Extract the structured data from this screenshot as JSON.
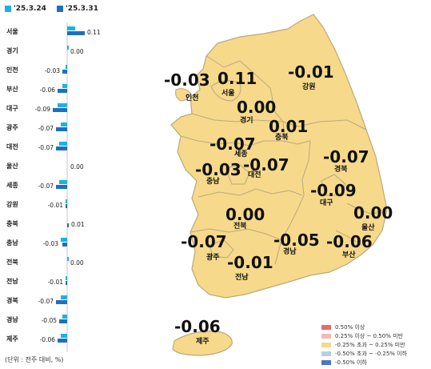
{
  "chart_data": {
    "type": "bar",
    "orientation": "horizontal",
    "categories": [
      "서울",
      "경기",
      "인천",
      "부산",
      "대구",
      "광주",
      "대전",
      "울산",
      "세종",
      "강원",
      "충북",
      "충남",
      "전북",
      "전남",
      "경북",
      "경남",
      "제주"
    ],
    "series": [
      {
        "name": "'25.3.24",
        "color": "#17b3e8",
        "values": [
          0.05,
          0.01,
          -0.01,
          -0.03,
          -0.06,
          -0.04,
          -0.05,
          0.0,
          -0.05,
          -0.01,
          0.0,
          -0.04,
          0.01,
          -0.01,
          -0.04,
          -0.03,
          -0.04
        ]
      },
      {
        "name": "'25.3.31",
        "color": "#1f6fbf",
        "values": [
          0.11,
          0.0,
          -0.03,
          -0.06,
          -0.09,
          -0.07,
          -0.07,
          0.0,
          -0.07,
          -0.01,
          0.01,
          -0.03,
          0.0,
          -0.01,
          -0.07,
          -0.05,
          -0.06
        ]
      }
    ],
    "value_labels": [
      "0.11",
      "0.00",
      "-0.03",
      "-0.06",
      "-0.09",
      "-0.07",
      "-0.07",
      "0.00",
      "-0.07",
      "-0.01",
      "0.01",
      "-0.03",
      "0.00",
      "-0.01",
      "-0.07",
      "-0.05",
      "-0.06"
    ],
    "legend_position": "top-left",
    "unit_note": "(단위 : 전주 대비, %)"
  },
  "map": {
    "regions": [
      {
        "id": "seoul",
        "name": "서울",
        "value": "0.11"
      },
      {
        "id": "gyeonggi",
        "name": "경기",
        "value": "0.00"
      },
      {
        "id": "incheon",
        "name": "인천",
        "value": "-0.03"
      },
      {
        "id": "gangwon",
        "name": "강원",
        "value": "-0.01"
      },
      {
        "id": "chungbuk",
        "name": "충북",
        "value": "0.01"
      },
      {
        "id": "sejong",
        "name": "세종",
        "value": "-0.07"
      },
      {
        "id": "chungnam",
        "name": "충남",
        "value": "-0.03"
      },
      {
        "id": "daejeon",
        "name": "대전",
        "value": "-0.07"
      },
      {
        "id": "gyeongbuk",
        "name": "경북",
        "value": "-0.07"
      },
      {
        "id": "daegu",
        "name": "대구",
        "value": "-0.09"
      },
      {
        "id": "jeonbuk",
        "name": "전북",
        "value": "0.00"
      },
      {
        "id": "ulsan",
        "name": "울산",
        "value": "0.00"
      },
      {
        "id": "gwangju",
        "name": "광주",
        "value": "-0.07"
      },
      {
        "id": "gyeongnam",
        "name": "경남",
        "value": "-0.05"
      },
      {
        "id": "busan",
        "name": "부산",
        "value": "-0.06"
      },
      {
        "id": "jeonnam",
        "name": "전남",
        "value": "-0.01"
      },
      {
        "id": "jeju",
        "name": "제주",
        "value": "-0.06"
      }
    ],
    "fill_color": "#f6d98a",
    "border_color": "#b9a97e",
    "legend": [
      {
        "label": "0.50% 이상",
        "color": "#e56b6b"
      },
      {
        "label": "0.25% 이상 ~ 0.50% 미만",
        "color": "#f4b8b8"
      },
      {
        "label": "-0.25% 초과 ~ 0.25% 미만",
        "color": "#f6d98a"
      },
      {
        "label": "-0.50% 초과 ~ -0.25% 이하",
        "color": "#b9cde8"
      },
      {
        "label": "-0.50% 이하",
        "color": "#4f74c9"
      }
    ]
  }
}
